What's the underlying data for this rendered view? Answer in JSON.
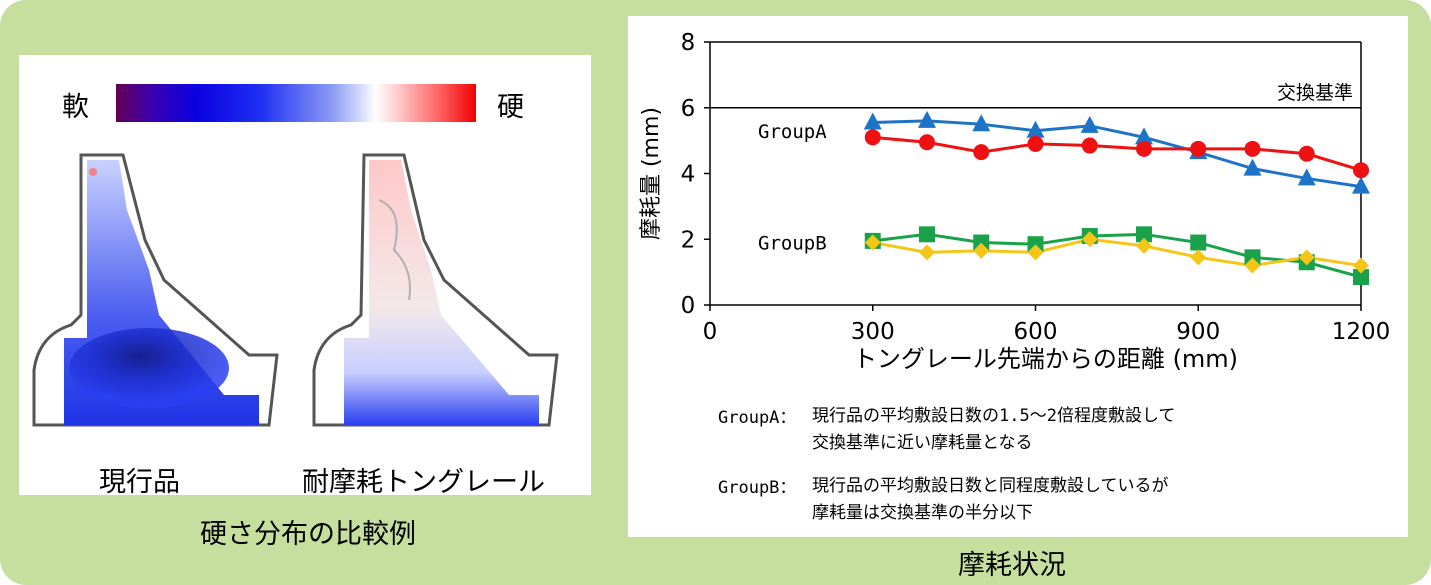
{
  "left_figure": {
    "soft_label": "軟",
    "hard_label": "硬",
    "current_label": "現行品",
    "new_label": "耐摩耗トングレール",
    "caption": "硬さ分布の比較例"
  },
  "right_caption": "摩耗状況",
  "notes": {
    "a_key": "GroupA：",
    "a_line1": "現行品の平均敷設日数の1.5～2倍程度敷設して",
    "a_line2": "交換基準に近い摩耗量となる",
    "b_key": "GroupB：",
    "b_line1": "現行品の平均敷設日数と同程度敷設しているが",
    "b_line2": "摩耗量は交換基準の半分以下"
  },
  "colors": {
    "frame": "#c6df9e",
    "blue": "#1e73c8",
    "red": "#ee1111",
    "green": "#1aa24a",
    "yellow": "#f5c518"
  },
  "chart_data": {
    "type": "line",
    "title": "",
    "xlabel": "トングレール先端からの距離 (mm)",
    "ylabel": "摩耗量 (mm)",
    "xlim": [
      0,
      1200
    ],
    "ylim": [
      0,
      8
    ],
    "xticks": [
      "0",
      "300",
      "600",
      "900",
      "1200"
    ],
    "yticks": [
      "0",
      "2",
      "4",
      "6",
      "8"
    ],
    "grid": false,
    "x": [
      300,
      400,
      500,
      600,
      700,
      800,
      900,
      1000,
      1100,
      1200
    ],
    "reference_line": {
      "y": 6,
      "label": "交換基準"
    },
    "group_labels": [
      {
        "text": "GroupA",
        "y": 5.3
      },
      {
        "text": "GroupB",
        "y": 1.9
      }
    ],
    "series": [
      {
        "color": "#1e73c8",
        "marker": "triangle",
        "values": [
          5.55,
          5.6,
          5.5,
          5.3,
          5.45,
          5.1,
          4.65,
          4.15,
          3.85,
          3.6
        ]
      },
      {
        "color": "#ee1111",
        "marker": "circle",
        "values": [
          5.1,
          4.95,
          4.65,
          4.9,
          4.85,
          4.75,
          4.75,
          4.75,
          4.6,
          4.1
        ]
      },
      {
        "color": "#1aa24a",
        "marker": "square",
        "values": [
          1.95,
          2.15,
          1.9,
          1.85,
          2.1,
          2.15,
          1.9,
          1.45,
          1.3,
          0.85
        ]
      },
      {
        "color": "#f5c518",
        "marker": "diamond",
        "values": [
          1.9,
          1.6,
          1.65,
          1.6,
          2.0,
          1.8,
          1.45,
          1.2,
          1.45,
          1.2
        ]
      }
    ]
  }
}
